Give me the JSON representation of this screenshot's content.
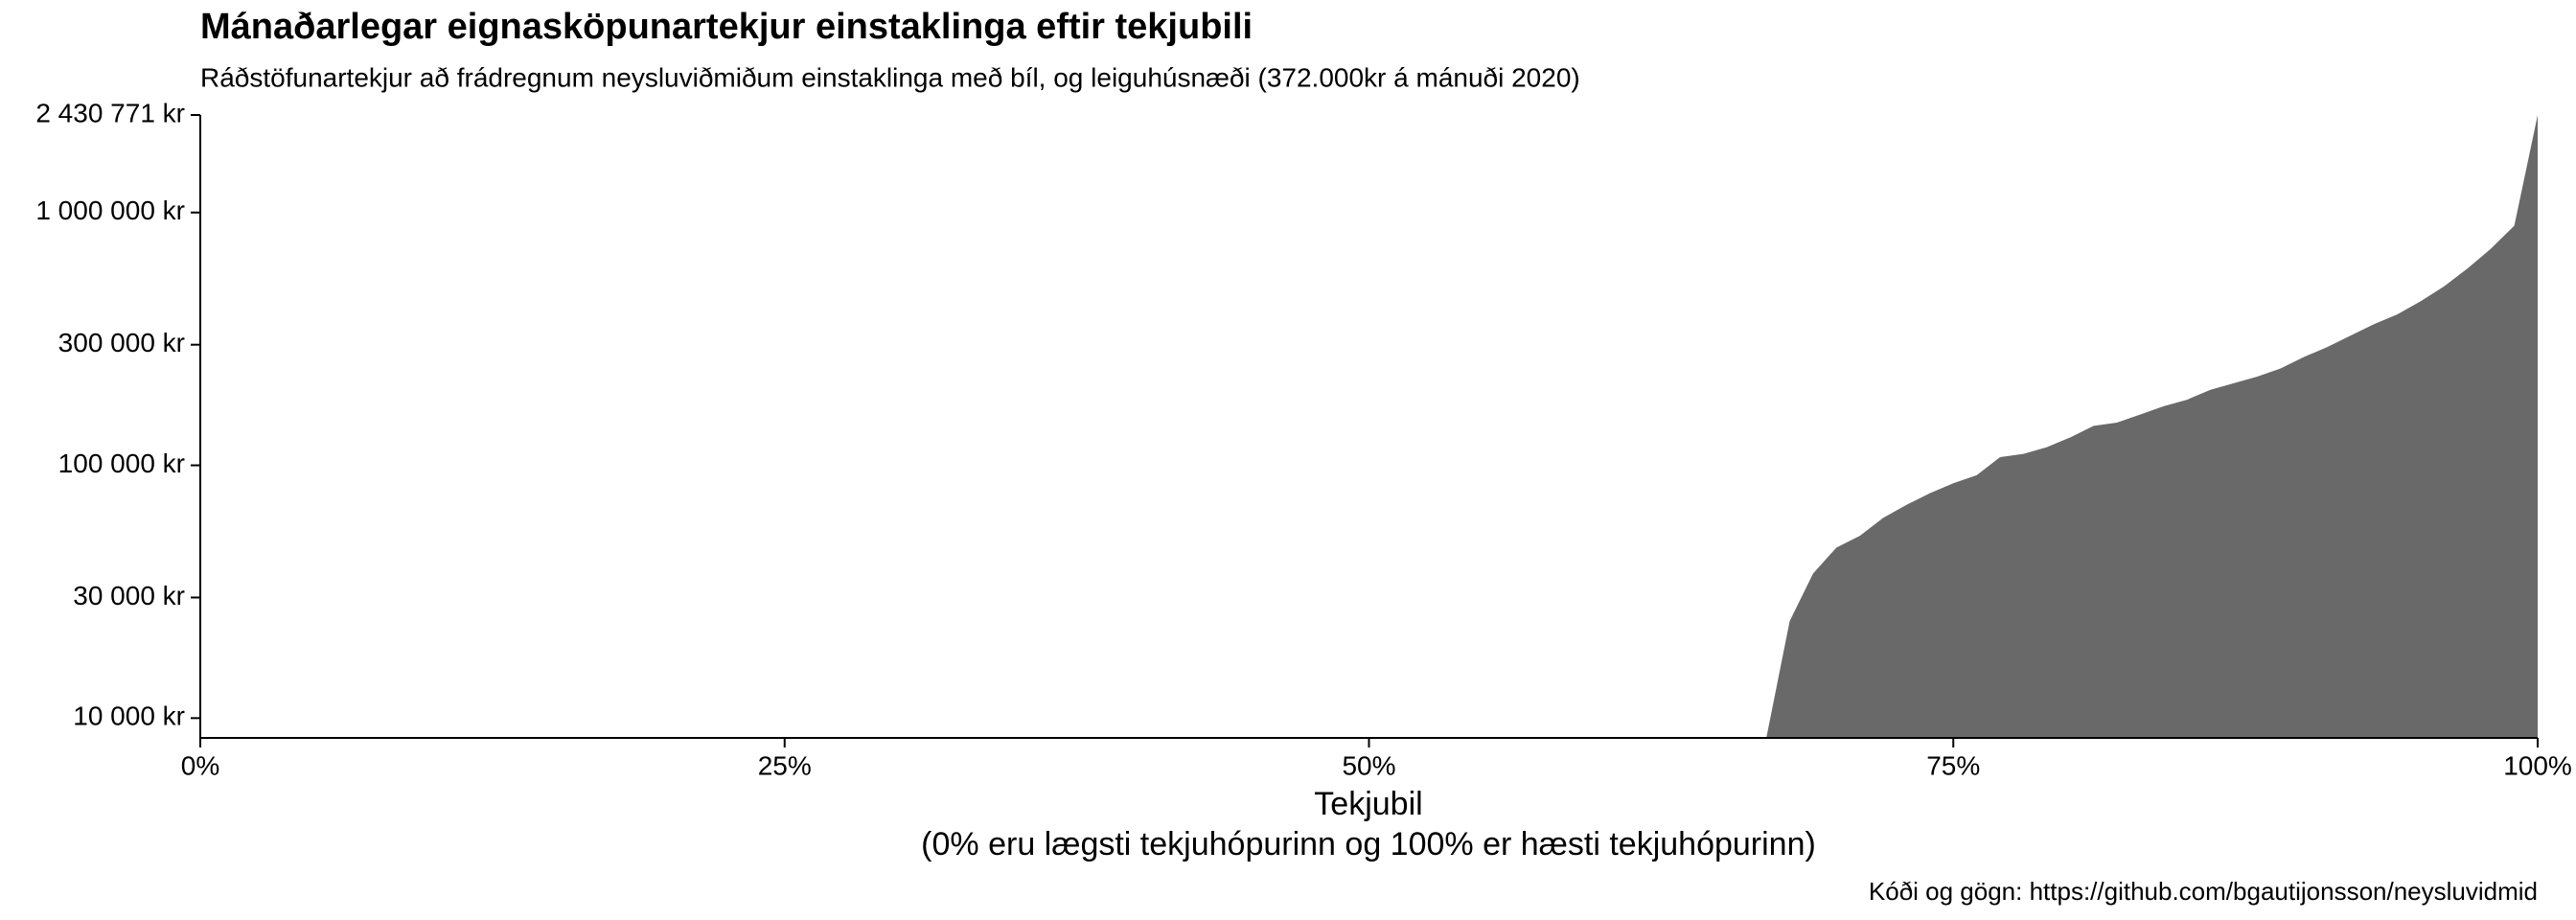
{
  "chart_data": {
    "type": "area",
    "title": "Mánaðarlegar eignasköpunartekjur einstaklinga eftir tekjubili",
    "subtitle": "Ráðstöfunartekjur að frádregnum neysluviðmiðum einstaklinga með bíl, og leiguhúsnæði (372.000kr á mánuði 2020)",
    "xlabel": [
      "Tekjubil",
      "(0% eru lægsti tekjuhópurinn og 100% er hæsti tekjuhópurinn)"
    ],
    "caption": "Kóði og gögn: https://github.com/bgautijonsson/neysluvidmid",
    "color": "#696969",
    "log_y": true,
    "x": [
      67,
      68,
      69,
      70,
      71,
      72,
      73,
      74,
      75,
      76,
      77,
      78,
      79,
      80,
      81,
      82,
      83,
      84,
      85,
      86,
      87,
      88,
      89,
      90,
      91,
      92,
      93,
      94,
      95,
      96,
      97,
      98,
      99,
      100
    ],
    "values": [
      8350,
      24200,
      37300,
      47300,
      52600,
      62000,
      69800,
      77600,
      84900,
      91400,
      107700,
      111000,
      117900,
      128900,
      143200,
      147500,
      158900,
      171300,
      181800,
      199000,
      211300,
      224300,
      241600,
      268300,
      293600,
      326000,
      361600,
      395700,
      446000,
      510500,
      601000,
      719500,
      887000,
      2430771
    ],
    "xlim": [
      0,
      100
    ],
    "xticks": [
      {
        "value": 0,
        "label": "0%"
      },
      {
        "value": 25,
        "label": "25%"
      },
      {
        "value": 50,
        "label": "50%"
      },
      {
        "value": 75,
        "label": "75%"
      },
      {
        "value": 100,
        "label": "100%"
      }
    ],
    "ylim": [
      8350,
      2430771
    ],
    "yticks": [
      {
        "value": 10000,
        "label": "10 000 kr"
      },
      {
        "value": 30000,
        "label": "30 000 kr"
      },
      {
        "value": 100000,
        "label": "100 000 kr"
      },
      {
        "value": 300000,
        "label": "300 000 kr"
      },
      {
        "value": 1000000,
        "label": "1 000 000 kr"
      },
      {
        "value": 2430771,
        "label": "2 430 771 kr"
      }
    ]
  }
}
